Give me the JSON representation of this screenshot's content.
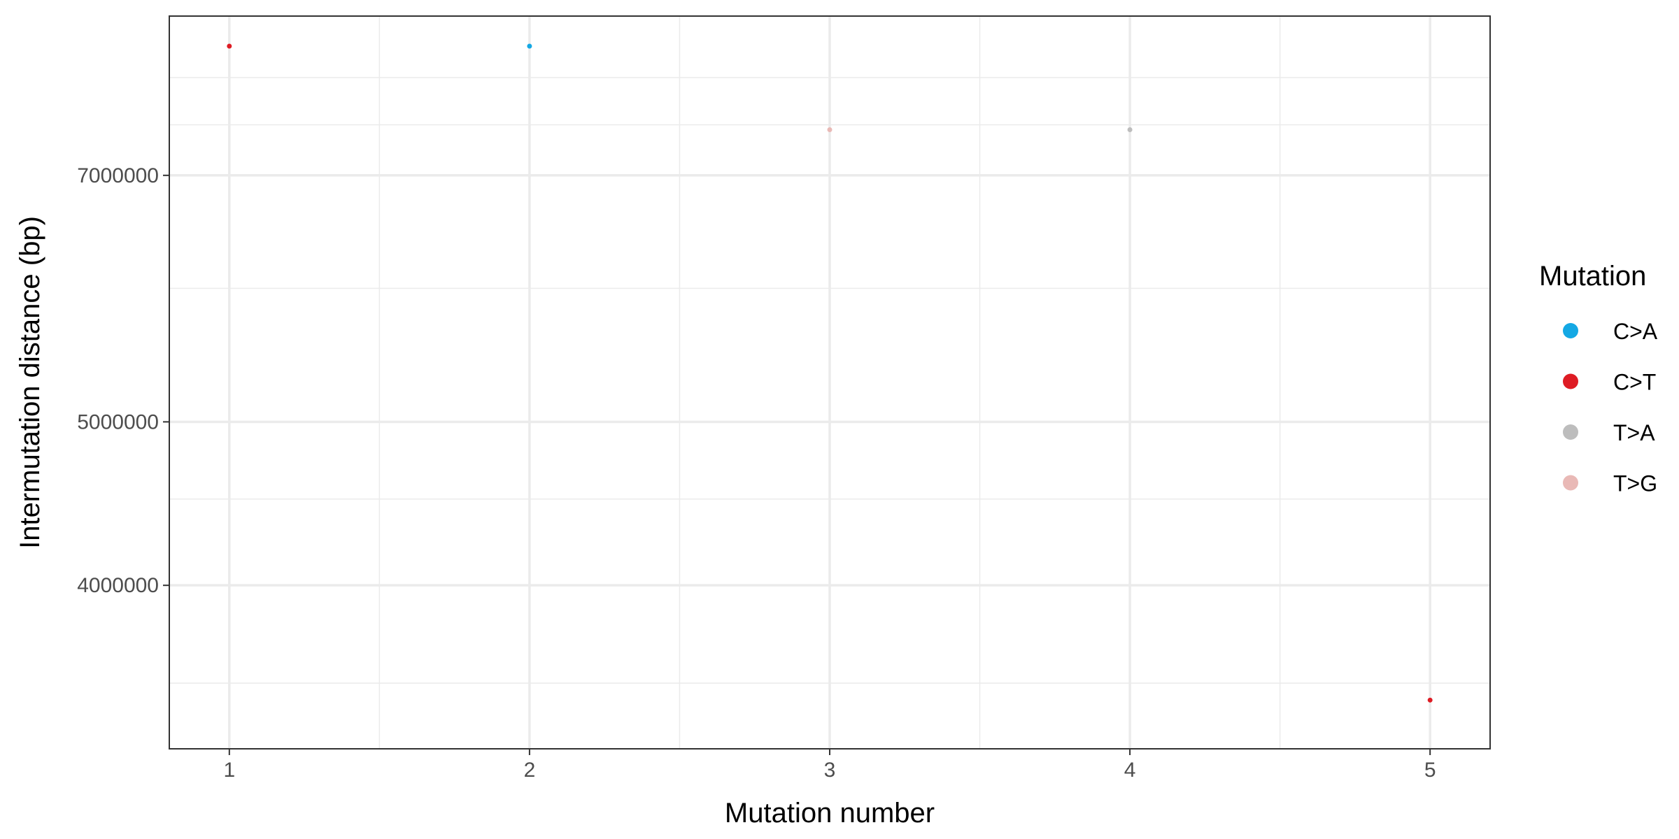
{
  "chart_data": {
    "type": "scatter",
    "xlabel": "Mutation number",
    "ylabel": "Intermutation distance (bp)",
    "y_scale": "log",
    "xlim": [
      0.8,
      5.2
    ],
    "ylim": [
      3200000,
      8700000
    ],
    "x_ticks": [
      1,
      2,
      3,
      4,
      5
    ],
    "y_ticks": [
      4000000,
      5000000,
      7000000
    ],
    "y_minor_ticks": [
      3500000,
      4500000,
      6000000,
      7500000,
      8000000
    ],
    "x_minor_ticks": [
      1.5,
      2.5,
      3.5,
      4.5
    ],
    "grid": true,
    "legend": {
      "title": "Mutation",
      "position": "right",
      "entries": [
        {
          "label": "C>A",
          "color": "#14a8e4"
        },
        {
          "label": "C>T",
          "color": "#de1c24"
        },
        {
          "label": "T>A",
          "color": "#bdbdbd"
        },
        {
          "label": "T>G",
          "color": "#e9b9b6"
        }
      ]
    },
    "points": [
      {
        "x": 1,
        "y": 8350000,
        "mutation": "C>T"
      },
      {
        "x": 2,
        "y": 8350000,
        "mutation": "C>A"
      },
      {
        "x": 3,
        "y": 7450000,
        "mutation": "T>G"
      },
      {
        "x": 4,
        "y": 7450000,
        "mutation": "T>A"
      },
      {
        "x": 5,
        "y": 3420000,
        "mutation": "C>T"
      }
    ]
  }
}
